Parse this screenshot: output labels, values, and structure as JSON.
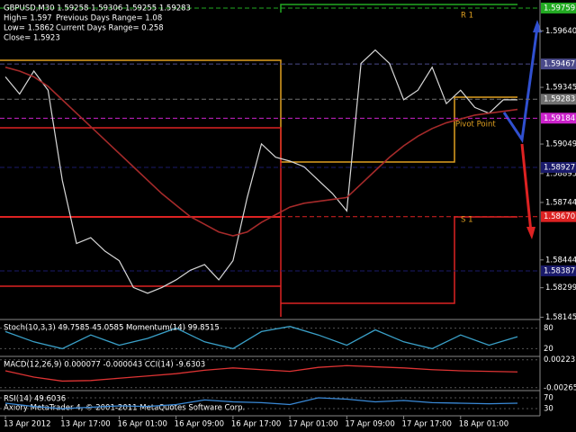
{
  "chart_data": [
    {
      "type": "line",
      "header": [
        "GBPUSD,M30  1.59258 1.59306 1.59255 1.59283",
        "High= 1.597",
        "Previous Days Range= 1.08",
        "Low= 1.5862",
        "Current Days Range= 0.258",
        "Close= 1.5923"
      ],
      "categories": [
        "13 Apr 2012",
        null,
        null,
        null,
        "13 Apr 17:00",
        null,
        null,
        null,
        "16 Apr 01:00",
        null,
        null,
        null,
        "16 Apr 09:00",
        null,
        null,
        null,
        "16 Apr 17:00",
        null,
        null,
        null,
        "17 Apr 01:00",
        null,
        null,
        null,
        "17 Apr 09:00",
        null,
        null,
        null,
        "17 Apr 17:00",
        null,
        null,
        null,
        "18 Apr 01:00",
        null,
        null,
        null,
        null
      ],
      "series": [
        {
          "color": "#d8d8d8",
          "values": [
            1.594,
            1.5931,
            1.5943,
            1.5933,
            1.5886,
            1.5853,
            1.5856,
            1.5849,
            1.5844,
            1.583,
            1.5827,
            1.583,
            1.5834,
            1.5839,
            1.5842,
            1.5834,
            1.5844,
            1.5877,
            1.5905,
            1.5898,
            1.5896,
            1.5893,
            1.5886,
            1.5879,
            1.587,
            1.5947,
            1.5954,
            1.5947,
            1.5928,
            1.5933,
            1.5945,
            1.5926,
            1.5933,
            1.5924,
            1.5921,
            1.5928,
            1.5928
          ]
        },
        {
          "color": "#a52a2a",
          "values": [
            1.5945,
            1.5943,
            1.594,
            1.5935,
            1.5928,
            1.5921,
            1.5914,
            1.5907,
            1.59,
            1.5893,
            1.5886,
            1.5879,
            1.5873,
            1.5867,
            1.5863,
            1.5859,
            1.5857,
            1.5859,
            1.5864,
            1.5868,
            1.5872,
            1.5874,
            1.5875,
            1.5876,
            1.5877,
            1.5884,
            1.5891,
            1.5898,
            1.5904,
            1.5909,
            1.5913,
            1.5916,
            1.5918,
            1.592,
            1.5921,
            1.5922,
            1.5923
          ]
        }
      ],
      "ylim": [
        1.58133,
        1.59801
      ],
      "yticks": [
        {
          "value": 1.5964,
          "label": "1.59640"
        },
        1.59345,
        1.59049,
        1.58895,
        1.58744,
        1.58444,
        1.58299,
        1.58145
      ],
      "levels": [
        {
          "value": 1.59759,
          "color": "#22aa22"
        },
        {
          "value": 1.59467,
          "color": "#4a4a8a"
        },
        {
          "value": 1.59283,
          "color": "#707070"
        },
        {
          "value": 1.59184,
          "color": "#cc22cc"
        },
        {
          "value": 1.58927,
          "color": "#1a1a6a"
        },
        {
          "value": 1.5867,
          "label": "1.58670",
          "color": "#dd2222"
        },
        {
          "value": 1.58387,
          "color": "#1a1a6a"
        }
      ],
      "annotations": [
        "R 1",
        "Pivot Point",
        "S 1"
      ],
      "footer": "Axiory MetaTrader 4, © 2001-2011 MetaQuotes Software Corp."
    },
    {
      "type": "line",
      "title": "Stoch(10,3,3) 49.7585 45.0585  Momentum(14) 99.8515",
      "color": "#3aa0c8",
      "values": [
        70,
        40,
        20,
        60,
        30,
        50,
        80,
        40,
        20,
        70,
        85,
        60,
        30,
        75,
        40,
        20,
        60,
        30,
        55
      ],
      "ylim": [
        0,
        100
      ],
      "yticks": [
        80,
        20
      ]
    },
    {
      "type": "line",
      "title": "MACD(12,26,9) 0.000077 -0.000043  CCI(14) -9.6303",
      "color": "#dd3333",
      "values": [
        0.0003,
        -0.0008,
        -0.0015,
        -0.0014,
        -0.001,
        -0.0006,
        -0.0002,
        0.0004,
        0.0008,
        0.0005,
        0.0002,
        0.0009,
        0.0012,
        0.001,
        0.0008,
        0.0005,
        0.0003,
        0.0002,
        0.0001
      ],
      "ylim": [
        -0.003,
        0.0025
      ],
      "yticks": [
        0.002231,
        -0.00265
      ]
    },
    {
      "type": "line",
      "title": "RSI(14) 49.6036",
      "color": "#3a8ad8",
      "values": [
        50,
        38,
        30,
        35,
        40,
        38,
        45,
        62,
        55,
        52,
        45,
        70,
        65,
        55,
        60,
        52,
        50,
        48,
        50
      ],
      "ylim": [
        10,
        90
      ],
      "yticks": [
        70,
        30
      ]
    }
  ]
}
